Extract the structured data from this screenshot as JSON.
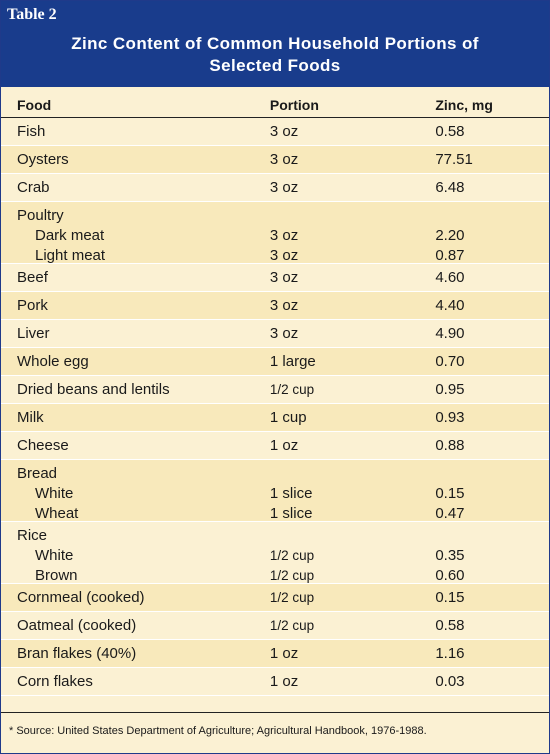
{
  "table_label": "Table 2",
  "title": "Zinc Content of Common Household Portions of Selected Foods",
  "columns": [
    "Food",
    "Portion",
    "Zinc, mg"
  ],
  "rows": [
    {
      "food": "Fish",
      "portion": "3 oz",
      "zinc": "0.58"
    },
    {
      "food": "Oysters",
      "portion": "3 oz",
      "zinc": "77.51"
    },
    {
      "food": "Crab",
      "portion": "3 oz",
      "zinc": "6.48"
    },
    {
      "food": "Poultry",
      "sub": [
        {
          "food": "Dark meat",
          "portion": "3 oz",
          "zinc": "2.20"
        },
        {
          "food": "Light meat",
          "portion": "3 oz",
          "zinc": "0.87"
        }
      ]
    },
    {
      "food": "Beef",
      "portion": "3 oz",
      "zinc": "4.60"
    },
    {
      "food": "Pork",
      "portion": "3 oz",
      "zinc": "4.40"
    },
    {
      "food": "Liver",
      "portion": "3 oz",
      "zinc": "4.90"
    },
    {
      "food": "Whole egg",
      "portion": "1 large",
      "zinc": "0.70"
    },
    {
      "food": "Dried beans and lentils",
      "portion": "1/2 cup",
      "zinc": "0.95"
    },
    {
      "food": "Milk",
      "portion": "1 cup",
      "zinc": "0.93"
    },
    {
      "food": "Cheese",
      "portion": "1 oz",
      "zinc": "0.88"
    },
    {
      "food": "Bread",
      "sub": [
        {
          "food": "White",
          "portion": "1 slice",
          "zinc": "0.15"
        },
        {
          "food": "Wheat",
          "portion": "1 slice",
          "zinc": "0.47"
        }
      ]
    },
    {
      "food": "Rice",
      "sub": [
        {
          "food": "White",
          "portion": "1/2 cup",
          "zinc": "0.35"
        },
        {
          "food": "Brown",
          "portion": "1/2 cup",
          "zinc": "0.60"
        }
      ]
    },
    {
      "food": "Cornmeal (cooked)",
      "portion": "1/2 cup",
      "zinc": "0.15"
    },
    {
      "food": "Oatmeal (cooked)",
      "portion": "1/2 cup",
      "zinc": "0.58"
    },
    {
      "food": "Bran flakes (40%)",
      "portion": "1 oz",
      "zinc": "1.16"
    },
    {
      "food": "Corn flakes",
      "portion": "1 oz",
      "zinc": "0.03"
    }
  ],
  "footnote": "* Source: United States Department of Agriculture; Agricultural Handbook, 1976-1988.",
  "colors": {
    "header": "#193c8c",
    "shaded_row": "#f8e9bb",
    "plain_row": "#fbf1d3"
  }
}
